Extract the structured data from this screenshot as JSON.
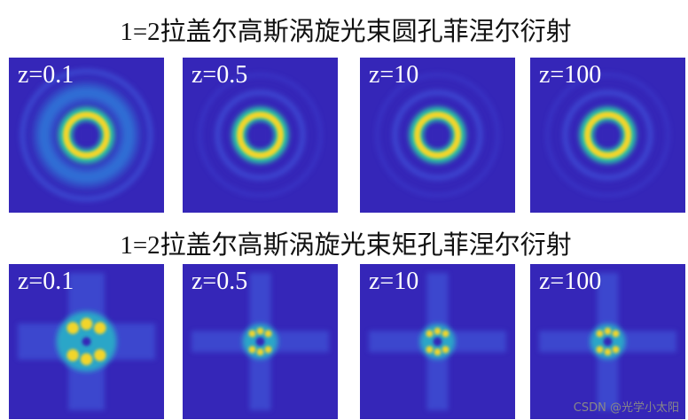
{
  "figure": {
    "rows": [
      {
        "title": "1=2拉盖尔高斯涡旋光束圆孔菲涅尔衍射",
        "panels": [
          {
            "label": "z=0.1"
          },
          {
            "label": "z=0.5"
          },
          {
            "label": "z=10"
          },
          {
            "label": "z=100"
          }
        ]
      },
      {
        "title": "1=2拉盖尔高斯涡旋光束矩孔菲涅尔衍射",
        "panels": [
          {
            "label": "z=0.1"
          },
          {
            "label": "z=0.5"
          },
          {
            "label": "z=10"
          },
          {
            "label": "z=100"
          }
        ]
      }
    ]
  },
  "watermark": "CSDN @光学小太阳"
}
